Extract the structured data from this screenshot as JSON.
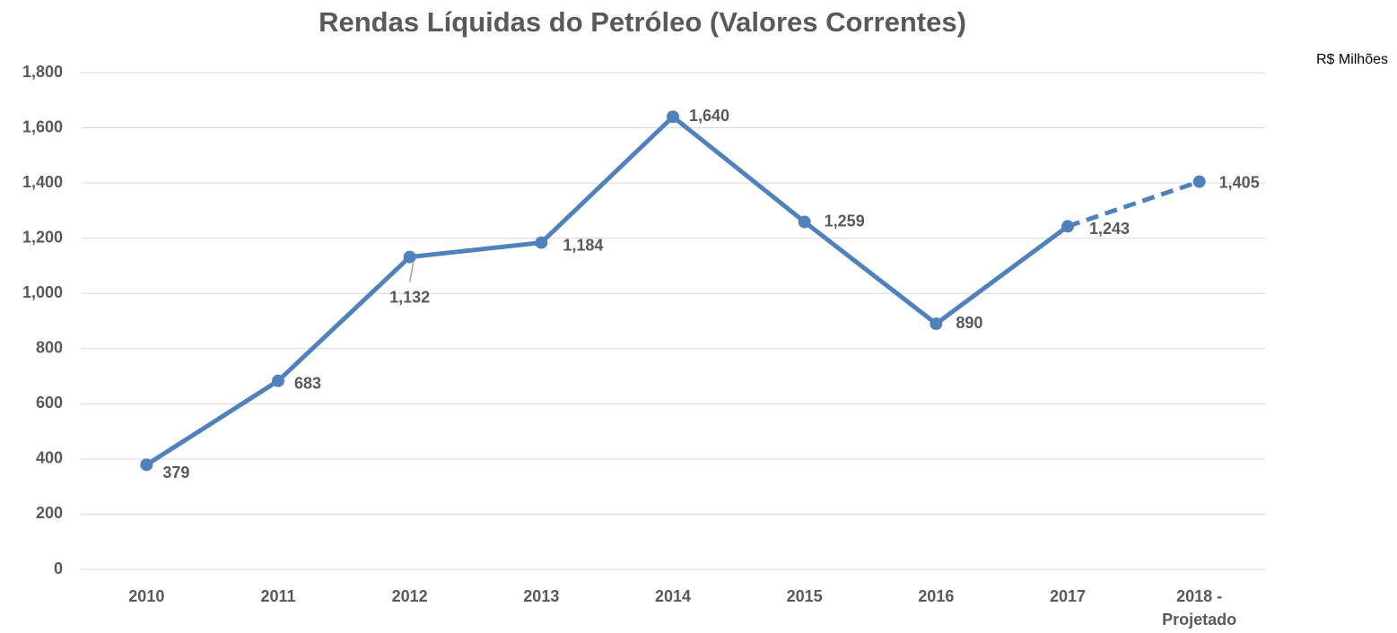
{
  "chart_data": {
    "type": "line",
    "title": "Rendas Líquidas do Petróleo (Valores Correntes)",
    "unit_label": "R$ Milhões",
    "categories": [
      "2010",
      "2011",
      "2012",
      "2013",
      "2014",
      "2015",
      "2016",
      "2017",
      "2018 - Projetado"
    ],
    "series": [
      {
        "name": "Rendas Líquidas",
        "color": "#4f81bd",
        "values": [
          379,
          683,
          1132,
          1184,
          1640,
          1259,
          890,
          1243,
          1405
        ],
        "value_labels": [
          "379",
          "683",
          "1,132",
          "1,184",
          "1,640",
          "1,259",
          "890",
          "1,243",
          "1,405"
        ],
        "dashed_last_segment": true
      }
    ],
    "ylim": [
      0,
      1800
    ],
    "yticks": [
      0,
      200,
      400,
      600,
      800,
      {
        "value": 1000,
        "label": "1,000"
      },
      {
        "value": 1200,
        "label": "1,200"
      },
      {
        "value": 1400,
        "label": "1,400"
      },
      {
        "value": 1600,
        "label": "1,600"
      },
      {
        "value": 1800,
        "label": "1,800"
      }
    ],
    "grid": true
  }
}
